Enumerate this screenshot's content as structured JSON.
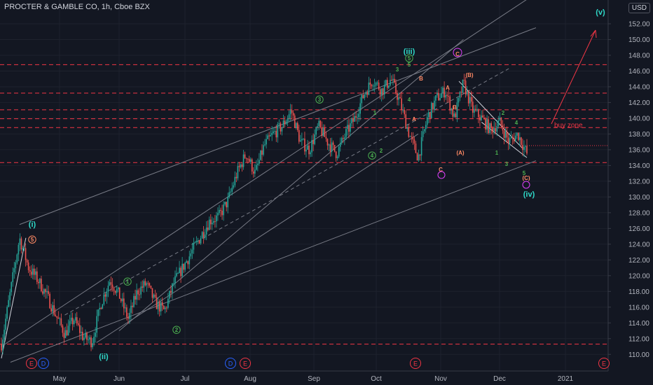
{
  "header": {
    "title": "PROCTER & GAMBLE CO, 1h, Cboe BZX",
    "currency": "USD"
  },
  "chart_data": {
    "type": "candlestick",
    "title": "PROCTER & GAMBLE CO, 1h, Cboe BZX",
    "ylim": [
      109,
      154
    ],
    "y_ticks": [
      110,
      112,
      114,
      116,
      118,
      120,
      122,
      124,
      126,
      128,
      130,
      132,
      134,
      136,
      138,
      140,
      142,
      144,
      146,
      148,
      150,
      152
    ],
    "x_ticks": [
      "May",
      "Jun",
      "Jul",
      "Aug",
      "Sep",
      "Oct",
      "Nov",
      "Dec",
      "2021"
    ],
    "price_path": [
      [
        0,
        111.3
      ],
      [
        1,
        118
      ],
      [
        2,
        124.8
      ],
      [
        3,
        121
      ],
      [
        4,
        119.5
      ],
      [
        5,
        117.5
      ],
      [
        6,
        115
      ],
      [
        7,
        112.6
      ],
      [
        8,
        114.5
      ],
      [
        9,
        112.2
      ],
      [
        10,
        111.6
      ],
      [
        11,
        116.5
      ],
      [
        12,
        119.5
      ],
      [
        13,
        117.5
      ],
      [
        14,
        114.5
      ],
      [
        15,
        118
      ],
      [
        16,
        119
      ],
      [
        17,
        116.5
      ],
      [
        18,
        115.5
      ],
      [
        19,
        119
      ],
      [
        20,
        121
      ],
      [
        21,
        123
      ],
      [
        22,
        125
      ],
      [
        23,
        127
      ],
      [
        24,
        127.5
      ],
      [
        25,
        129.5
      ],
      [
        26,
        133
      ],
      [
        27,
        135.5
      ],
      [
        28,
        133
      ],
      [
        29,
        136.5
      ],
      [
        30,
        138
      ],
      [
        31,
        139
      ],
      [
        32,
        141
      ],
      [
        33,
        137
      ],
      [
        34,
        136
      ],
      [
        35,
        139
      ],
      [
        36,
        137
      ],
      [
        37,
        135.5
      ],
      [
        38,
        138
      ],
      [
        39,
        140
      ],
      [
        40,
        143
      ],
      [
        41,
        144.9
      ],
      [
        42,
        143.5
      ],
      [
        43,
        145
      ],
      [
        44,
        142
      ],
      [
        45,
        138
      ],
      [
        46,
        135
      ],
      [
        47,
        140
      ],
      [
        48,
        142.5
      ],
      [
        49,
        143.5
      ],
      [
        50,
        140
      ],
      [
        51,
        144.5
      ],
      [
        52,
        141
      ],
      [
        53,
        140
      ],
      [
        54,
        138.5
      ],
      [
        55,
        139.5
      ],
      [
        56,
        137
      ],
      [
        57,
        138
      ],
      [
        58,
        135.5
      ]
    ],
    "horizontal_levels": [
      146.81,
      143.2,
      141.07,
      139.94,
      138.82,
      134.37,
      111.3
    ],
    "current_price": 136.53,
    "annotations": {
      "cyan_labels": [
        "(i)",
        "(ii)",
        "(iii)",
        "(iv)",
        "(v)"
      ],
      "green_labels": [
        "1",
        "2",
        "3",
        "4",
        "5"
      ],
      "orange_labels": [
        "(A)",
        "(B)",
        "(C)",
        "A",
        "B",
        "C"
      ],
      "text": "buy zone"
    },
    "event_markers": [
      "E",
      "D",
      "D",
      "E",
      "E",
      "E"
    ]
  }
}
